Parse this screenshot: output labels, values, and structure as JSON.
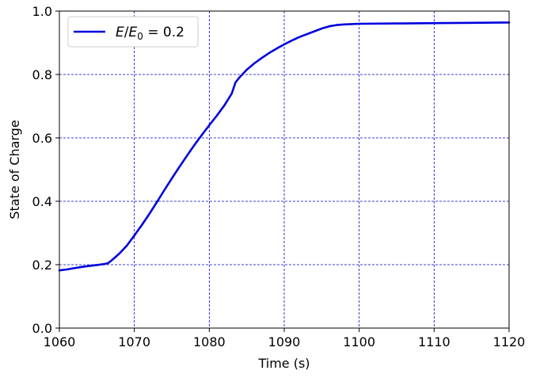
{
  "chart_data": {
    "type": "line",
    "xlabel": "Time (s)",
    "ylabel": "State of Charge",
    "xlim": [
      1060,
      1120
    ],
    "ylim": [
      0.0,
      1.0
    ],
    "xticks": [
      1060,
      1070,
      1080,
      1090,
      1100,
      1110,
      1120
    ],
    "yticks": [
      0.0,
      0.2,
      0.4,
      0.6,
      0.8,
      1.0
    ],
    "xtick_labels": [
      "1060",
      "1070",
      "1080",
      "1090",
      "1100",
      "1110",
      "1120"
    ],
    "ytick_labels": [
      "0.0",
      "0.2",
      "0.4",
      "0.6",
      "0.8",
      "1.0"
    ],
    "grid": true,
    "grid_color": "#0000cc",
    "legend_position": "upper-left",
    "series": [
      {
        "legend": {
          "var": "E",
          "sep": "/",
          "sub_var": "E",
          "sub": "0",
          "eq": " = 0.2"
        },
        "color": "#0000dd",
        "x": [
          1060,
          1061,
          1062,
          1063,
          1064,
          1065,
          1066,
          1066.5,
          1067,
          1068,
          1069,
          1070,
          1071,
          1072,
          1073,
          1074,
          1075,
          1076,
          1077,
          1078,
          1079,
          1080,
          1081,
          1082,
          1083,
          1083.5,
          1084,
          1085,
          1086,
          1087,
          1088,
          1089,
          1090,
          1091,
          1092,
          1093,
          1094,
          1095,
          1096,
          1097,
          1098,
          1100,
          1105,
          1110,
          1115,
          1120
        ],
        "y": [
          0.182,
          0.185,
          0.189,
          0.193,
          0.196,
          0.199,
          0.202,
          0.205,
          0.214,
          0.235,
          0.26,
          0.292,
          0.325,
          0.36,
          0.397,
          0.435,
          0.472,
          0.508,
          0.543,
          0.577,
          0.609,
          0.64,
          0.67,
          0.702,
          0.74,
          0.775,
          0.79,
          0.815,
          0.835,
          0.852,
          0.868,
          0.882,
          0.895,
          0.907,
          0.918,
          0.927,
          0.936,
          0.945,
          0.952,
          0.956,
          0.958,
          0.96,
          0.961,
          0.962,
          0.963,
          0.964
        ]
      }
    ]
  }
}
